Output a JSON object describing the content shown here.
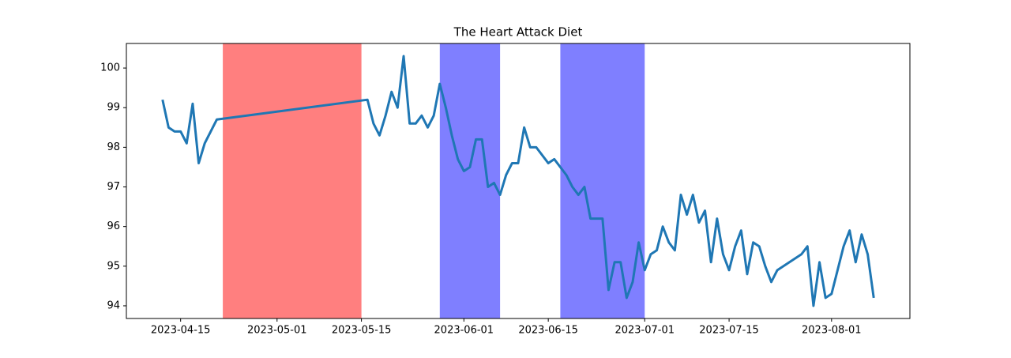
{
  "chart_data": {
    "type": "line",
    "title": "The Heart Attack Diet",
    "x": [
      "2023-04-12",
      "2023-04-13",
      "2023-04-14",
      "2023-04-15",
      "2023-04-16",
      "2023-04-17",
      "2023-04-18",
      "2023-04-19",
      "2023-04-21",
      "2023-05-16",
      "2023-05-17",
      "2023-05-18",
      "2023-05-19",
      "2023-05-20",
      "2023-05-21",
      "2023-05-22",
      "2023-05-23",
      "2023-05-24",
      "2023-05-25",
      "2023-05-26",
      "2023-05-27",
      "2023-05-28",
      "2023-05-29",
      "2023-05-30",
      "2023-05-31",
      "2023-06-01",
      "2023-06-02",
      "2023-06-03",
      "2023-06-04",
      "2023-06-05",
      "2023-06-06",
      "2023-06-07",
      "2023-06-08",
      "2023-06-09",
      "2023-06-10",
      "2023-06-11",
      "2023-06-12",
      "2023-06-13",
      "2023-06-15",
      "2023-06-16",
      "2023-06-18",
      "2023-06-19",
      "2023-06-20",
      "2023-06-21",
      "2023-06-22",
      "2023-06-24",
      "2023-06-25",
      "2023-06-26",
      "2023-06-27",
      "2023-06-28",
      "2023-06-29",
      "2023-06-30",
      "2023-07-01",
      "2023-07-02",
      "2023-07-03",
      "2023-07-04",
      "2023-07-05",
      "2023-07-06",
      "2023-07-07",
      "2023-07-08",
      "2023-07-09",
      "2023-07-10",
      "2023-07-11",
      "2023-07-12",
      "2023-07-13",
      "2023-07-14",
      "2023-07-15",
      "2023-07-16",
      "2023-07-17",
      "2023-07-18",
      "2023-07-19",
      "2023-07-20",
      "2023-07-21",
      "2023-07-22",
      "2023-07-23",
      "2023-07-27",
      "2023-07-28",
      "2023-07-29",
      "2023-07-30",
      "2023-07-31",
      "2023-08-01",
      "2023-08-02",
      "2023-08-03",
      "2023-08-04",
      "2023-08-05",
      "2023-08-06",
      "2023-08-07",
      "2023-08-08"
    ],
    "values": [
      99.2,
      98.5,
      98.4,
      98.4,
      98.1,
      99.1,
      97.6,
      98.1,
      98.7,
      99.2,
      98.6,
      98.3,
      98.8,
      99.4,
      99.0,
      100.3,
      98.6,
      98.6,
      98.8,
      98.5,
      98.8,
      99.6,
      99.0,
      98.3,
      97.7,
      97.4,
      97.5,
      98.2,
      98.2,
      97.0,
      97.1,
      96.8,
      97.3,
      97.6,
      97.6,
      98.5,
      98.0,
      98.0,
      97.6,
      97.7,
      97.3,
      97.0,
      96.8,
      97.0,
      96.2,
      96.2,
      94.4,
      95.1,
      95.1,
      94.2,
      94.6,
      95.6,
      94.9,
      95.3,
      95.4,
      96.0,
      95.6,
      95.4,
      96.8,
      96.3,
      96.8,
      96.1,
      96.4,
      95.1,
      96.2,
      95.3,
      94.9,
      95.5,
      95.9,
      94.8,
      95.6,
      95.5,
      95.0,
      94.6,
      94.9,
      95.3,
      95.5,
      94.0,
      95.1,
      94.2,
      94.3,
      94.9,
      95.5,
      95.9,
      95.1,
      95.8,
      95.3,
      94.2
    ],
    "color": "#1f77b4",
    "spans": [
      {
        "start": "2023-04-22",
        "end": "2023-05-15",
        "color": "#ff7f7f"
      },
      {
        "start": "2023-05-28",
        "end": "2023-06-07",
        "color": "#7f7fff"
      },
      {
        "start": "2023-06-17",
        "end": "2023-07-01",
        "color": "#7f7fff"
      }
    ],
    "xlim": [
      "2023-04-06",
      "2023-08-14"
    ],
    "xticks": [
      "2023-04-15",
      "2023-05-01",
      "2023-05-15",
      "2023-06-01",
      "2023-06-15",
      "2023-07-01",
      "2023-07-15",
      "2023-08-01"
    ],
    "ylim": [
      93.68,
      100.62
    ],
    "yticks": [
      94,
      95,
      96,
      97,
      98,
      99,
      100
    ]
  }
}
